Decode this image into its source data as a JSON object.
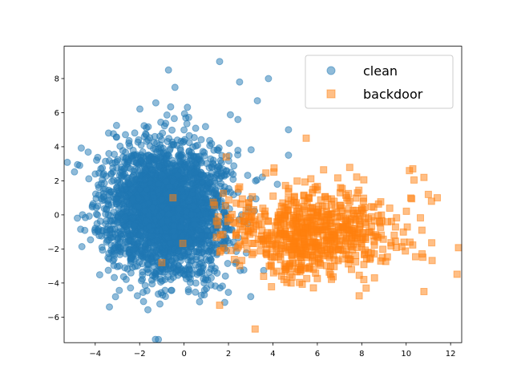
{
  "chart_data": {
    "type": "scatter",
    "title": "",
    "xlabel": "",
    "ylabel": "",
    "xlim": [
      -5.4,
      12.5
    ],
    "ylim": [
      -7.5,
      9.9
    ],
    "xticks": [
      -4,
      -2,
      0,
      2,
      4,
      6,
      8,
      10,
      12
    ],
    "yticks": [
      -6,
      -4,
      -2,
      0,
      2,
      4,
      6,
      8
    ],
    "grid": false,
    "legend_position": "top-right",
    "series": [
      {
        "name": "clean",
        "marker": "circle",
        "color": "#1f77b4",
        "alpha": 0.5,
        "cluster_center": [
          -0.8,
          0.3
        ],
        "cluster_spread": [
          1.3,
          1.9
        ],
        "approx_count": 3000,
        "outliers": [
          [
            -4.7,
            2.9
          ],
          [
            -4.0,
            2.4
          ],
          [
            -3.4,
            4.8
          ],
          [
            -0.7,
            8.5
          ],
          [
            1.6,
            9.0
          ],
          [
            2.5,
            7.8
          ],
          [
            3.8,
            8.0
          ],
          [
            4.7,
            3.5
          ],
          [
            4.7,
            5.0
          ],
          [
            0.7,
            -5.1
          ],
          [
            -3.9,
            0.0
          ],
          [
            -3.2,
            -2.7
          ],
          [
            4.2,
            1.8
          ],
          [
            3.3,
            6.7
          ],
          [
            3.0,
            -4.8
          ]
        ]
      },
      {
        "name": "backdoor",
        "marker": "square",
        "color": "#ff7f0e",
        "alpha": 0.5,
        "cluster_center": [
          5.8,
          -1.1
        ],
        "cluster_spread": [
          1.9,
          1.3
        ],
        "approx_count": 700,
        "outliers": [
          [
            5.5,
            4.5
          ],
          [
            11.4,
            1.0
          ],
          [
            10.8,
            -4.5
          ],
          [
            3.2,
            -6.7
          ],
          [
            10.3,
            2.7
          ],
          [
            -1.0,
            -2.8
          ],
          [
            -0.5,
            1.0
          ],
          [
            1.6,
            -5.3
          ],
          [
            1.9,
            3.4
          ],
          [
            8.2,
            -4.3
          ],
          [
            10.8,
            2.2
          ],
          [
            9.9,
            -1.6
          ],
          [
            11.0,
            1.2
          ]
        ]
      }
    ]
  }
}
